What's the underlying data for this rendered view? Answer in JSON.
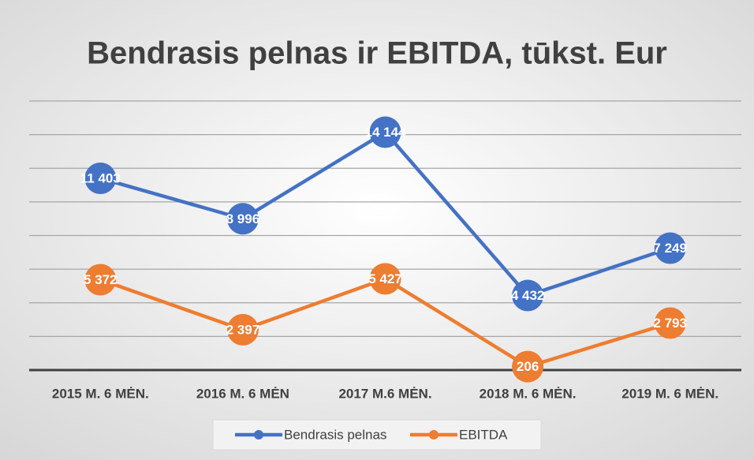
{
  "chart_data": {
    "type": "line",
    "title": "Bendrasis pelnas ir EBITDA, tūkst. Eur",
    "categories": [
      "2015 M. 6 MĖN.",
      "2016 M. 6 MĖN",
      "2017 M.6 MĖN.",
      "2018 M. 6 MĖN.",
      "2019 M. 6 MĖN."
    ],
    "series": [
      {
        "name": "Bendrasis pelnas",
        "color": "#4472c4",
        "values": [
          11403,
          8996,
          14144,
          4432,
          7249
        ],
        "value_labels": [
          "11 403",
          "8 996",
          "14 144",
          "4 432",
          "7 249"
        ]
      },
      {
        "name": "EBITDA",
        "color": "#ed7d31",
        "values": [
          5372,
          2397,
          5427,
          206,
          2793
        ],
        "value_labels": [
          "5 372",
          "2 397",
          "5 427",
          "206",
          "2 793"
        ]
      }
    ],
    "ylim": [
      0,
      16000
    ],
    "yticks": [
      0,
      2000,
      4000,
      6000,
      8000,
      10000,
      12000,
      14000,
      16000
    ],
    "grid": true,
    "legend": "bottom"
  }
}
